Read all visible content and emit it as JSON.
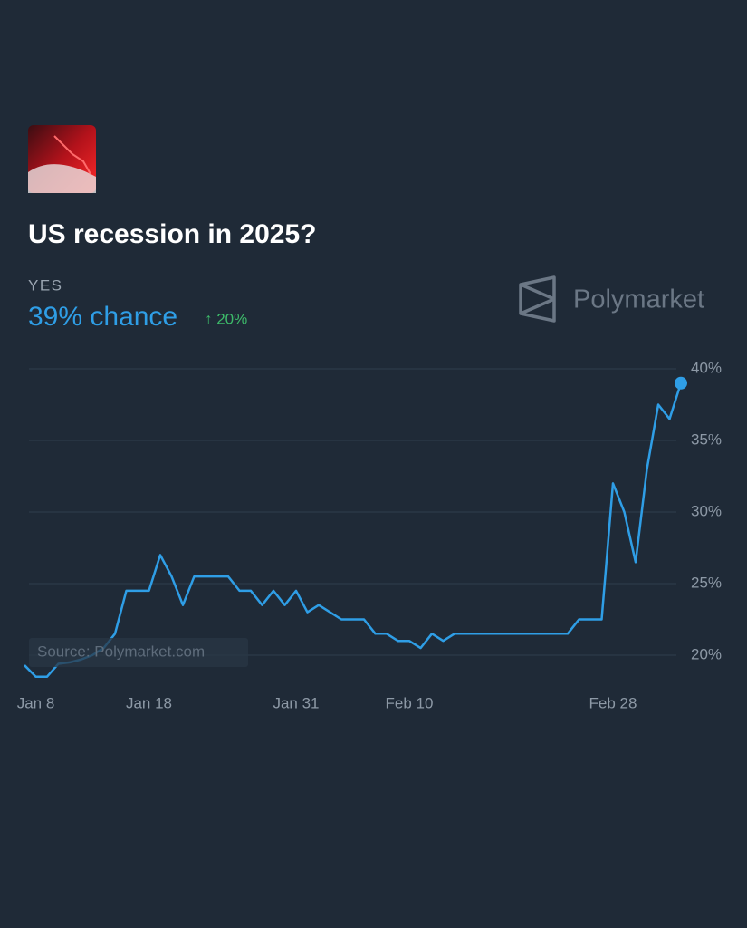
{
  "chart_data": {
    "type": "line",
    "title": "US recession in 2025?",
    "outcome": "YES",
    "headline": "39% chance",
    "change": "↑ 20%",
    "brand": "Polymarket",
    "source": "Source: Polymarket.com",
    "color": "#2f9ee6",
    "categories": [
      null,
      "Jan 8",
      null,
      null,
      null,
      null,
      null,
      null,
      null,
      null,
      null,
      "Jan 18",
      null,
      null,
      null,
      null,
      null,
      null,
      null,
      null,
      null,
      null,
      null,
      null,
      "Jan 31",
      null,
      null,
      null,
      null,
      null,
      null,
      null,
      null,
      null,
      "Feb 10",
      null,
      null,
      null,
      null,
      null,
      null,
      null,
      null,
      null,
      null,
      null,
      null,
      null,
      null,
      null,
      null,
      null,
      "Feb 28",
      null,
      null,
      null,
      null,
      null,
      null
    ],
    "values": [
      19.3,
      18.5,
      18.5,
      19.4,
      19.5,
      19.7,
      20,
      20.5,
      21.5,
      24.5,
      24.5,
      24.5,
      27,
      25.5,
      23.5,
      25.5,
      25.5,
      25.5,
      25.5,
      24.5,
      24.5,
      23.5,
      24.5,
      23.5,
      24.5,
      23,
      23.5,
      23,
      22.5,
      22.5,
      22.5,
      21.5,
      21.5,
      21,
      21,
      20.5,
      21.5,
      21,
      21.5,
      21.5,
      21.5,
      21.5,
      21.5,
      21.5,
      21.5,
      21.5,
      21.5,
      21.5,
      21.5,
      22.5,
      22.5,
      22.5,
      32,
      30,
      26.5,
      33,
      37.5,
      36.5,
      39
    ],
    "ylim": [
      18,
      40
    ],
    "yticks": [
      {
        "value": 20,
        "label": "20%"
      },
      {
        "value": 25,
        "label": "25%"
      },
      {
        "value": 30,
        "label": "30%"
      },
      {
        "value": 35,
        "label": "35%"
      },
      {
        "value": 40,
        "label": "40%"
      }
    ],
    "grid": true
  }
}
